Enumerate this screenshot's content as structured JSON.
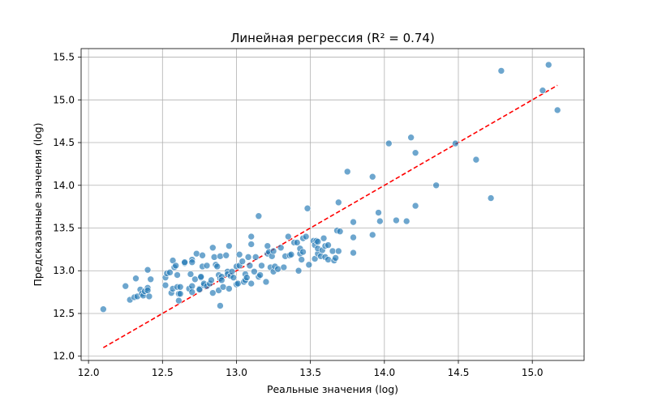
{
  "chart_data": {
    "type": "scatter",
    "title": "Линейная регрессия (R² = 0.74)",
    "xlabel": "Реальные значения (log)",
    "ylabel": "Предсказанные значения (log)",
    "xlim": [
      11.95,
      15.35
    ],
    "ylim": [
      11.95,
      15.6
    ],
    "xticks": [
      "12.0",
      "12.5",
      "13.0",
      "13.5",
      "14.0",
      "14.5",
      "15.0"
    ],
    "yticks": [
      "12.0",
      "12.5",
      "13.0",
      "13.5",
      "14.0",
      "14.5",
      "15.0",
      "15.5"
    ],
    "grid": true,
    "legend": "none",
    "colors": {
      "points": "#1f77b4",
      "fit_line": "#ff0000"
    },
    "fit_line": {
      "x": [
        12.1,
        15.17
      ],
      "y": [
        12.1,
        15.17
      ],
      "style": "dashed"
    },
    "points": [
      [
        12.1,
        12.55
      ],
      [
        12.25,
        12.82
      ],
      [
        12.28,
        12.66
      ],
      [
        12.31,
        12.69
      ],
      [
        12.32,
        12.91
      ],
      [
        12.33,
        12.7
      ],
      [
        12.35,
        12.78
      ],
      [
        12.36,
        12.73
      ],
      [
        12.37,
        12.71
      ],
      [
        12.38,
        12.76
      ],
      [
        12.4,
        12.8
      ],
      [
        12.4,
        12.77
      ],
      [
        12.4,
        13.01
      ],
      [
        12.41,
        12.7
      ],
      [
        12.42,
        12.9
      ],
      [
        12.52,
        12.83
      ],
      [
        12.52,
        12.92
      ],
      [
        12.53,
        12.97
      ],
      [
        12.55,
        12.98
      ],
      [
        12.56,
        12.74
      ],
      [
        12.57,
        12.79
      ],
      [
        12.57,
        13.12
      ],
      [
        12.58,
        13.04
      ],
      [
        12.59,
        13.06
      ],
      [
        12.6,
        12.81
      ],
      [
        12.6,
        12.95
      ],
      [
        12.61,
        12.73
      ],
      [
        12.61,
        12.65
      ],
      [
        12.62,
        12.81
      ],
      [
        12.62,
        12.73
      ],
      [
        12.65,
        13.09
      ],
      [
        12.65,
        13.1
      ],
      [
        12.68,
        12.79
      ],
      [
        12.69,
        12.96
      ],
      [
        12.7,
        12.82
      ],
      [
        12.7,
        12.75
      ],
      [
        12.7,
        13.13
      ],
      [
        12.7,
        13.1
      ],
      [
        12.72,
        12.9
      ],
      [
        12.73,
        13.2
      ],
      [
        12.75,
        12.79
      ],
      [
        12.75,
        12.78
      ],
      [
        12.76,
        12.92
      ],
      [
        12.76,
        12.93
      ],
      [
        12.77,
        13.18
      ],
      [
        12.77,
        13.05
      ],
      [
        12.78,
        12.83
      ],
      [
        12.78,
        12.85
      ],
      [
        12.8,
        12.82
      ],
      [
        12.8,
        13.06
      ],
      [
        12.82,
        12.85
      ],
      [
        12.83,
        12.89
      ],
      [
        12.84,
        13.27
      ],
      [
        12.84,
        12.74
      ],
      [
        12.85,
        13.16
      ],
      [
        12.86,
        13.07
      ],
      [
        12.87,
        13.05
      ],
      [
        12.88,
        12.95
      ],
      [
        12.88,
        12.77
      ],
      [
        12.89,
        12.91
      ],
      [
        12.89,
        13.17
      ],
      [
        12.89,
        12.59
      ],
      [
        12.9,
        12.93
      ],
      [
        12.9,
        12.89
      ],
      [
        12.91,
        12.81
      ],
      [
        12.93,
        13.18
      ],
      [
        12.94,
        12.99
      ],
      [
        12.94,
        12.96
      ],
      [
        12.95,
        13.29
      ],
      [
        12.95,
        12.79
      ],
      [
        12.96,
        12.94
      ],
      [
        12.97,
        12.99
      ],
      [
        12.98,
        12.92
      ],
      [
        13.0,
        12.84
      ],
      [
        13.0,
        13.05
      ],
      [
        13.01,
        12.85
      ],
      [
        13.02,
        13.06
      ],
      [
        13.02,
        13.19
      ],
      [
        13.04,
        13.11
      ],
      [
        13.05,
        12.87
      ],
      [
        13.06,
        12.96
      ],
      [
        13.06,
        12.89
      ],
      [
        13.07,
        12.92
      ],
      [
        13.08,
        13.16
      ],
      [
        13.09,
        13.06
      ],
      [
        13.1,
        12.85
      ],
      [
        13.1,
        13.4
      ],
      [
        13.1,
        13.31
      ],
      [
        13.12,
        12.99
      ],
      [
        13.13,
        13.16
      ],
      [
        13.15,
        12.93
      ],
      [
        13.15,
        13.64
      ],
      [
        13.16,
        12.95
      ],
      [
        13.17,
        13.06
      ],
      [
        13.2,
        12.87
      ],
      [
        13.21,
        13.2
      ],
      [
        13.21,
        13.29
      ],
      [
        13.22,
        13.22
      ],
      [
        13.23,
        13.04
      ],
      [
        13.24,
        13.17
      ],
      [
        13.25,
        12.99
      ],
      [
        13.25,
        13.23
      ],
      [
        13.26,
        13.05
      ],
      [
        13.28,
        13.02
      ],
      [
        13.3,
        13.27
      ],
      [
        13.32,
        13.04
      ],
      [
        13.33,
        13.17
      ],
      [
        13.35,
        13.4
      ],
      [
        13.36,
        13.18
      ],
      [
        13.37,
        13.19
      ],
      [
        13.39,
        13.33
      ],
      [
        13.41,
        13.33
      ],
      [
        13.42,
        13.0
      ],
      [
        13.43,
        13.2
      ],
      [
        13.43,
        13.26
      ],
      [
        13.44,
        13.13
      ],
      [
        13.45,
        13.38
      ],
      [
        13.45,
        13.22
      ],
      [
        13.47,
        13.4
      ],
      [
        13.48,
        13.73
      ],
      [
        13.49,
        13.07
      ],
      [
        13.52,
        13.35
      ],
      [
        13.53,
        13.3
      ],
      [
        13.53,
        13.14
      ],
      [
        13.54,
        13.35
      ],
      [
        13.55,
        13.2
      ],
      [
        13.55,
        13.26
      ],
      [
        13.55,
        13.34
      ],
      [
        13.57,
        13.17
      ],
      [
        13.58,
        13.24
      ],
      [
        13.59,
        13.38
      ],
      [
        13.6,
        13.16
      ],
      [
        13.6,
        13.29
      ],
      [
        13.62,
        13.3
      ],
      [
        13.62,
        13.13
      ],
      [
        13.65,
        13.23
      ],
      [
        13.66,
        13.12
      ],
      [
        13.67,
        13.15
      ],
      [
        13.68,
        13.47
      ],
      [
        13.69,
        13.23
      ],
      [
        13.69,
        13.8
      ],
      [
        13.7,
        13.46
      ],
      [
        13.75,
        14.16
      ],
      [
        13.79,
        13.57
      ],
      [
        13.79,
        13.39
      ],
      [
        13.79,
        13.21
      ],
      [
        13.92,
        13.42
      ],
      [
        13.92,
        14.1
      ],
      [
        13.96,
        13.68
      ],
      [
        13.97,
        13.58
      ],
      [
        14.03,
        14.49
      ],
      [
        14.08,
        13.59
      ],
      [
        14.15,
        13.58
      ],
      [
        14.18,
        14.56
      ],
      [
        14.21,
        14.38
      ],
      [
        14.21,
        13.76
      ],
      [
        14.35,
        14.0
      ],
      [
        14.48,
        14.49
      ],
      [
        14.62,
        14.3
      ],
      [
        14.72,
        13.85
      ],
      [
        14.79,
        15.34
      ],
      [
        15.07,
        15.11
      ],
      [
        15.11,
        15.41
      ],
      [
        15.17,
        14.88
      ]
    ]
  }
}
